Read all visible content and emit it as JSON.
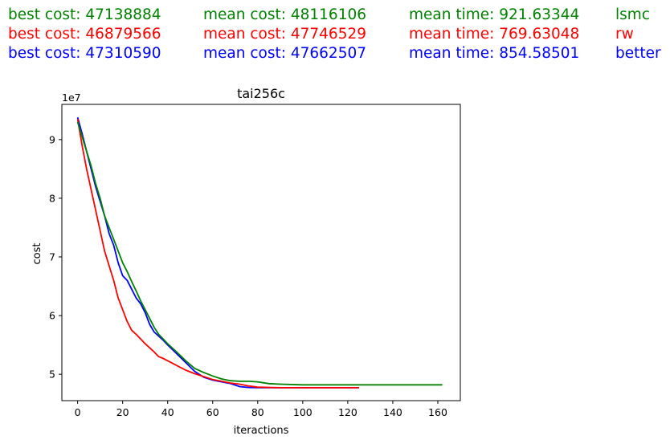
{
  "stats_rows": [
    {
      "color": "#008000",
      "best": "best cost: 47138884",
      "mean_cost": "mean cost: 48116106",
      "mean_time": "mean time: 921.63344",
      "name": "lsmc"
    },
    {
      "color": "#ff0000",
      "best": "best cost: 46879566",
      "mean_cost": "mean cost: 47746529",
      "mean_time": "mean time: 769.63048",
      "name": "rw"
    },
    {
      "color": "#0000ff",
      "best": "best cost: 47310590",
      "mean_cost": "mean cost: 47662507",
      "mean_time": "mean time: 854.58501",
      "name": "better"
    }
  ],
  "chart_data": {
    "type": "line",
    "title": "tai256c",
    "xlabel": "iteractions",
    "ylabel": "cost",
    "y_scale_label": "1e7",
    "xlim": [
      -7,
      170
    ],
    "ylim": [
      45500000,
      96000000
    ],
    "xticks": [
      0,
      20,
      40,
      60,
      80,
      100,
      120,
      140,
      160
    ],
    "yticks": [
      50000000,
      60000000,
      70000000,
      80000000,
      90000000
    ],
    "ytick_labels": [
      "5",
      "6",
      "7",
      "8",
      "9"
    ],
    "series": [
      {
        "name": "better",
        "color": "#0000ff",
        "x": [
          0,
          2,
          4,
          6,
          8,
          10,
          12,
          14,
          16,
          18,
          20,
          22,
          24,
          26,
          28,
          30,
          32,
          34,
          36,
          38,
          40,
          44,
          48,
          52,
          56,
          60,
          64,
          68,
          72,
          76,
          80,
          90,
          100,
          110,
          120,
          125
        ],
        "y": [
          93800000,
          91000000,
          88000000,
          85000000,
          82000000,
          79500000,
          77000000,
          74000000,
          72000000,
          69000000,
          66800000,
          66000000,
          64500000,
          63000000,
          62000000,
          60500000,
          58500000,
          57200000,
          56500000,
          55800000,
          55000000,
          53500000,
          52000000,
          50500000,
          49500000,
          49000000,
          48700000,
          48400000,
          47900000,
          47750000,
          47700000,
          47700000,
          47700000,
          47700000,
          47700000,
          47700000
        ]
      },
      {
        "name": "rw",
        "color": "#ff0000",
        "x": [
          0,
          2,
          4,
          6,
          8,
          10,
          12,
          14,
          16,
          18,
          20,
          22,
          24,
          26,
          28,
          30,
          32,
          34,
          36,
          38,
          40,
          44,
          48,
          52,
          56,
          60,
          64,
          68,
          72,
          76,
          80,
          90,
          100,
          110,
          120,
          125
        ],
        "y": [
          93500000,
          89000000,
          85000000,
          81500000,
          78000000,
          74500000,
          71000000,
          68500000,
          66000000,
          63000000,
          61000000,
          59000000,
          57500000,
          56800000,
          56000000,
          55200000,
          54500000,
          53800000,
          53000000,
          52700000,
          52300000,
          51500000,
          50700000,
          50100000,
          49600000,
          49100000,
          48800000,
          48500000,
          48300000,
          48000000,
          47800000,
          47700000,
          47700000,
          47700000,
          47700000,
          47700000
        ]
      },
      {
        "name": "lsmc",
        "color": "#008000",
        "x": [
          0,
          2,
          4,
          6,
          8,
          10,
          12,
          14,
          16,
          18,
          20,
          22,
          24,
          26,
          28,
          30,
          32,
          34,
          36,
          38,
          40,
          44,
          48,
          52,
          56,
          60,
          64,
          68,
          72,
          76,
          80,
          85,
          90,
          100,
          110,
          120,
          130,
          140,
          150,
          162
        ],
        "y": [
          93000000,
          90500000,
          88000000,
          85500000,
          82500000,
          80000000,
          77000000,
          75000000,
          73000000,
          71000000,
          69000000,
          67500000,
          65800000,
          64200000,
          62500000,
          61000000,
          59500000,
          58000000,
          56800000,
          56000000,
          55200000,
          53800000,
          52300000,
          51000000,
          50300000,
          49700000,
          49200000,
          48900000,
          48800000,
          48800000,
          48700000,
          48400000,
          48300000,
          48200000,
          48200000,
          48200000,
          48200000,
          48200000,
          48200000,
          48200000
        ]
      }
    ]
  }
}
